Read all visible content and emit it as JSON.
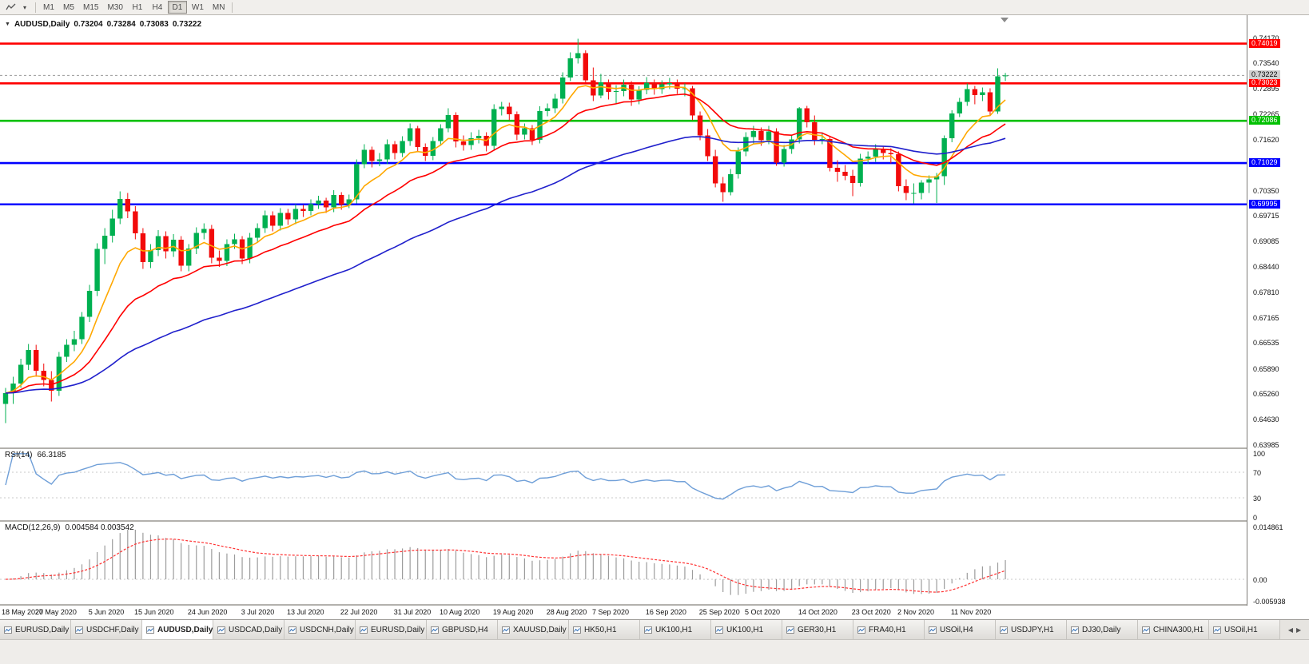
{
  "colors": {
    "up": "#00b050",
    "down": "#f20a0a",
    "ma_fast": "#ffa800",
    "ma_mid": "#ff0000",
    "ma_slow": "#2020cc",
    "rsi_line": "#6f9fd8",
    "macd_hist": "#9c9c9c",
    "macd_signal": "#ff3030",
    "level_red": "#ff0000",
    "level_green": "#00c000",
    "level_blue": "#0000ff",
    "grid_dotted": "#c8c8c8",
    "current_price_line": "#9a9a9a",
    "current_badge_bg": "#d0d0d0"
  },
  "toolbar": {
    "timeframes": [
      "M1",
      "M5",
      "M15",
      "M30",
      "H1",
      "H4",
      "D1",
      "W1",
      "MN"
    ],
    "active_timeframe": "D1"
  },
  "chart_header": {
    "expand_icon": "▼",
    "symbol": "AUDUSD,Daily",
    "open": "0.73204",
    "high": "0.73284",
    "low": "0.73083",
    "close": "0.73222"
  },
  "price_axis": {
    "ticks": [
      "0.74170",
      "0.73540",
      "0.72895",
      "0.72265",
      "0.71620",
      "0.70350",
      "0.69715",
      "0.69085",
      "0.68440",
      "0.67810",
      "0.67165",
      "0.66535",
      "0.65890",
      "0.65260",
      "0.64630",
      "0.63985"
    ],
    "current": {
      "value": "0.73222"
    },
    "level_badges": [
      {
        "value": "0.74019",
        "color": "#ff0000"
      },
      {
        "value": "0.73023",
        "color": "#ff0000"
      },
      {
        "value": "0.72086",
        "color": "#00c000"
      },
      {
        "value": "0.71029",
        "color": "#0000ff"
      },
      {
        "value": "0.69995",
        "color": "#0000ff"
      }
    ]
  },
  "rsi_panel": {
    "label": "RSI(14)",
    "value": "66.3185",
    "axis": [
      "100",
      "70",
      "30",
      "0"
    ],
    "dotted_levels": [
      70,
      30
    ]
  },
  "macd_panel": {
    "label": "MACD(12,26,9)",
    "values": "0.004584 0.003542",
    "axis_max": "0.014861",
    "axis_zero": "0.00",
    "axis_min": "-0.005938"
  },
  "tabs": {
    "items": [
      "EURUSD,Daily",
      "USDCHF,Daily",
      "AUDUSD,Daily",
      "USDCAD,Daily",
      "USDCNH,Daily",
      "EURUSD,Daily",
      "GBPUSD,H4",
      "XAUUSD,Daily",
      "HK50,H1",
      "UK100,H1",
      "UK100,H1",
      "GER30,H1",
      "FRA40,H1",
      "USOil,H4",
      "USDJPY,H1",
      "DJ30,Daily",
      "CHINA300,H1",
      "USOil,H1"
    ],
    "active_index": 2,
    "nav_left": "◀",
    "nav_right": "▶"
  },
  "chart_data": {
    "type": "candlestick",
    "symbol": "AUDUSD",
    "timeframe": "Daily",
    "last_bar": {
      "open": 0.73204,
      "high": 0.73284,
      "low": 0.73083,
      "close": 0.73222
    },
    "horizontal_levels": [
      {
        "price": 0.74019,
        "color": "#ff0000"
      },
      {
        "price": 0.73023,
        "color": "#ff0000"
      },
      {
        "price": 0.72086,
        "color": "#00c000"
      },
      {
        "price": 0.71029,
        "color": "#0000ff"
      },
      {
        "price": 0.69995,
        "color": "#0000ff"
      }
    ],
    "moving_averages": [
      {
        "period": 8,
        "type": "ema",
        "color": "#ffa800"
      },
      {
        "period": 20,
        "type": "ema",
        "color": "#ff0000"
      },
      {
        "period": 55,
        "type": "ema",
        "color": "#2020cc"
      }
    ],
    "indicators": {
      "rsi": {
        "period": 14,
        "current": 66.3185,
        "levels": [
          70,
          30
        ],
        "range": [
          0,
          100
        ]
      },
      "macd": {
        "fast": 12,
        "slow": 26,
        "signal": 9,
        "current_main": 0.004584,
        "current_signal": 0.003542,
        "axis_range": [
          -0.005938,
          0.014861
        ]
      }
    },
    "x_labels": [
      {
        "index": 0,
        "date": "18 May 2020"
      },
      {
        "index": 7,
        "date": "27 May 2020"
      },
      {
        "index": 14,
        "date": "5 Jun 2020"
      },
      {
        "index": 20,
        "date": "15 Jun 2020"
      },
      {
        "index": 27,
        "date": "24 Jun 2020"
      },
      {
        "index": 34,
        "date": "3 Jul 2020"
      },
      {
        "index": 40,
        "date": "13 Jul 2020"
      },
      {
        "index": 47,
        "date": "22 Jul 2020"
      },
      {
        "index": 54,
        "date": "31 Jul 2020"
      },
      {
        "index": 60,
        "date": "10 Aug 2020"
      },
      {
        "index": 67,
        "date": "19 Aug 2020"
      },
      {
        "index": 74,
        "date": "28 Aug 2020"
      },
      {
        "index": 80,
        "date": "7 Sep 2020"
      },
      {
        "index": 87,
        "date": "16 Sep 2020"
      },
      {
        "index": 94,
        "date": "25 Sep 2020"
      },
      {
        "index": 100,
        "date": "5 Oct 2020"
      },
      {
        "index": 107,
        "date": "14 Oct 2020"
      },
      {
        "index": 114,
        "date": "23 Oct 2020"
      },
      {
        "index": 120,
        "date": "2 Nov 2020"
      },
      {
        "index": 127,
        "date": "11 Nov 2020"
      }
    ],
    "candles": [
      [
        0.65,
        0.654,
        0.6452,
        0.6527
      ],
      [
        0.6527,
        0.6568,
        0.65,
        0.6551
      ],
      [
        0.6551,
        0.6613,
        0.654,
        0.6598
      ],
      [
        0.6598,
        0.665,
        0.6585,
        0.6635
      ],
      [
        0.6635,
        0.6648,
        0.6568,
        0.6583
      ],
      [
        0.6583,
        0.6601,
        0.6544,
        0.656
      ],
      [
        0.656,
        0.6582,
        0.6506,
        0.6533
      ],
      [
        0.6533,
        0.663,
        0.652,
        0.6618
      ],
      [
        0.6618,
        0.6662,
        0.6605,
        0.6648
      ],
      [
        0.6648,
        0.6683,
        0.6632,
        0.6662
      ],
      [
        0.6662,
        0.673,
        0.665,
        0.6718
      ],
      [
        0.6718,
        0.6798,
        0.6705,
        0.6783
      ],
      [
        0.6783,
        0.6902,
        0.677,
        0.6888
      ],
      [
        0.6888,
        0.694,
        0.685,
        0.6921
      ],
      [
        0.6921,
        0.6986,
        0.6904,
        0.6964
      ],
      [
        0.6964,
        0.7032,
        0.695,
        0.7013
      ],
      [
        0.7013,
        0.7028,
        0.6965,
        0.6982
      ],
      [
        0.6982,
        0.6995,
        0.6912,
        0.6927
      ],
      [
        0.6927,
        0.694,
        0.6838,
        0.6855
      ],
      [
        0.6855,
        0.69,
        0.684,
        0.6885
      ],
      [
        0.6885,
        0.6935,
        0.687,
        0.692
      ],
      [
        0.692,
        0.6932,
        0.6864,
        0.6882
      ],
      [
        0.6882,
        0.6925,
        0.6868,
        0.6911
      ],
      [
        0.6911,
        0.692,
        0.6832,
        0.6846
      ],
      [
        0.6846,
        0.69,
        0.6832,
        0.6889
      ],
      [
        0.6889,
        0.6942,
        0.6875,
        0.6928
      ],
      [
        0.6928,
        0.6952,
        0.6912,
        0.6938
      ],
      [
        0.6938,
        0.6948,
        0.6852,
        0.6866
      ],
      [
        0.6866,
        0.6884,
        0.6843,
        0.6858
      ],
      [
        0.6858,
        0.6912,
        0.6845,
        0.69
      ],
      [
        0.69,
        0.6926,
        0.6888,
        0.6912
      ],
      [
        0.6912,
        0.692,
        0.685,
        0.6864
      ],
      [
        0.6864,
        0.6928,
        0.6852,
        0.6916
      ],
      [
        0.6916,
        0.6952,
        0.6904,
        0.694
      ],
      [
        0.694,
        0.6984,
        0.6928,
        0.6972
      ],
      [
        0.6972,
        0.6982,
        0.6932,
        0.6946
      ],
      [
        0.6946,
        0.699,
        0.6934,
        0.6978
      ],
      [
        0.6978,
        0.6988,
        0.6948,
        0.6962
      ],
      [
        0.6962,
        0.7,
        0.695,
        0.6988
      ],
      [
        0.6988,
        0.6998,
        0.6968,
        0.6983
      ],
      [
        0.6983,
        0.7012,
        0.6972,
        0.7
      ],
      [
        0.7,
        0.7021,
        0.6988,
        0.7009
      ],
      [
        0.7009,
        0.7016,
        0.6978,
        0.6992
      ],
      [
        0.6992,
        0.7035,
        0.698,
        0.7023
      ],
      [
        0.7023,
        0.703,
        0.6986,
        0.6999
      ],
      [
        0.6999,
        0.7024,
        0.699,
        0.7012
      ],
      [
        0.7012,
        0.7112,
        0.7002,
        0.71
      ],
      [
        0.71,
        0.715,
        0.709,
        0.7136
      ],
      [
        0.7136,
        0.7144,
        0.7092,
        0.7108
      ],
      [
        0.7108,
        0.7128,
        0.7095,
        0.7112
      ],
      [
        0.7112,
        0.7162,
        0.71,
        0.715
      ],
      [
        0.715,
        0.7158,
        0.7112,
        0.7128
      ],
      [
        0.7128,
        0.717,
        0.7118,
        0.7158
      ],
      [
        0.7158,
        0.7202,
        0.7146,
        0.719
      ],
      [
        0.719,
        0.7196,
        0.713,
        0.7143
      ],
      [
        0.7143,
        0.7152,
        0.7108,
        0.7121
      ],
      [
        0.7121,
        0.7168,
        0.711,
        0.7158
      ],
      [
        0.7158,
        0.72,
        0.7146,
        0.719
      ],
      [
        0.719,
        0.724,
        0.718,
        0.7223
      ],
      [
        0.7223,
        0.723,
        0.7142,
        0.7157
      ],
      [
        0.7157,
        0.7172,
        0.7134,
        0.7148
      ],
      [
        0.7148,
        0.718,
        0.7136,
        0.7165
      ],
      [
        0.7165,
        0.7186,
        0.7152,
        0.7171
      ],
      [
        0.7171,
        0.718,
        0.7132,
        0.7146
      ],
      [
        0.7146,
        0.725,
        0.7136,
        0.7238
      ],
      [
        0.7238,
        0.7256,
        0.7222,
        0.7244
      ],
      [
        0.7244,
        0.7254,
        0.721,
        0.7225
      ],
      [
        0.7225,
        0.7232,
        0.716,
        0.7174
      ],
      [
        0.7174,
        0.7202,
        0.7162,
        0.719
      ],
      [
        0.719,
        0.7198,
        0.7148,
        0.7161
      ],
      [
        0.7161,
        0.7245,
        0.7152,
        0.7233
      ],
      [
        0.7233,
        0.7252,
        0.722,
        0.724
      ],
      [
        0.724,
        0.7276,
        0.7228,
        0.7264
      ],
      [
        0.7264,
        0.733,
        0.7252,
        0.7317
      ],
      [
        0.7317,
        0.738,
        0.7308,
        0.7365
      ],
      [
        0.7365,
        0.7414,
        0.7352,
        0.7378
      ],
      [
        0.7378,
        0.7385,
        0.73,
        0.731
      ],
      [
        0.731,
        0.7342,
        0.7258,
        0.7272
      ],
      [
        0.7272,
        0.7326,
        0.7265,
        0.7305
      ],
      [
        0.7305,
        0.7312,
        0.7262,
        0.7281
      ],
      [
        0.7281,
        0.7298,
        0.7252,
        0.7283
      ],
      [
        0.7283,
        0.7312,
        0.727,
        0.7299
      ],
      [
        0.7299,
        0.7308,
        0.7246,
        0.7262
      ],
      [
        0.7262,
        0.7295,
        0.725,
        0.7286
      ],
      [
        0.7286,
        0.7318,
        0.7275,
        0.7304
      ],
      [
        0.7304,
        0.7312,
        0.7274,
        0.7288
      ],
      [
        0.7288,
        0.731,
        0.7276,
        0.73
      ],
      [
        0.73,
        0.7316,
        0.7288,
        0.7303
      ],
      [
        0.7303,
        0.7312,
        0.7276,
        0.7289
      ],
      [
        0.7289,
        0.7302,
        0.727,
        0.729
      ],
      [
        0.729,
        0.7296,
        0.721,
        0.7222
      ],
      [
        0.7222,
        0.7232,
        0.716,
        0.7172
      ],
      [
        0.7172,
        0.7188,
        0.7108,
        0.712
      ],
      [
        0.712,
        0.7136,
        0.7042,
        0.7052
      ],
      [
        0.7052,
        0.7068,
        0.7006,
        0.703
      ],
      [
        0.703,
        0.7088,
        0.7022,
        0.7075
      ],
      [
        0.7075,
        0.7142,
        0.7064,
        0.7132
      ],
      [
        0.7132,
        0.718,
        0.712,
        0.7168
      ],
      [
        0.7168,
        0.7196,
        0.7152,
        0.7183
      ],
      [
        0.7183,
        0.7192,
        0.7146,
        0.716
      ],
      [
        0.716,
        0.7196,
        0.715,
        0.7182
      ],
      [
        0.7182,
        0.719,
        0.7096,
        0.7104
      ],
      [
        0.7104,
        0.7148,
        0.7094,
        0.7138
      ],
      [
        0.7138,
        0.7172,
        0.7126,
        0.7162
      ],
      [
        0.7162,
        0.7243,
        0.7152,
        0.724
      ],
      [
        0.724,
        0.7246,
        0.7192,
        0.7205
      ],
      [
        0.7205,
        0.7222,
        0.7148,
        0.7161
      ],
      [
        0.7161,
        0.718,
        0.715,
        0.7163
      ],
      [
        0.7163,
        0.717,
        0.7082,
        0.7091
      ],
      [
        0.7091,
        0.711,
        0.7056,
        0.7081
      ],
      [
        0.7081,
        0.7098,
        0.706,
        0.7071
      ],
      [
        0.7071,
        0.7086,
        0.702,
        0.7053
      ],
      [
        0.7053,
        0.7126,
        0.7044,
        0.7114
      ],
      [
        0.7114,
        0.7132,
        0.71,
        0.7119
      ],
      [
        0.7119,
        0.715,
        0.7106,
        0.7138
      ],
      [
        0.7138,
        0.7146,
        0.7112,
        0.7128
      ],
      [
        0.7128,
        0.714,
        0.7102,
        0.7125
      ],
      [
        0.7125,
        0.7132,
        0.7032,
        0.7045
      ],
      [
        0.7045,
        0.7062,
        0.701,
        0.7028
      ],
      [
        0.7028,
        0.7052,
        0.7002,
        0.7028
      ],
      [
        0.7028,
        0.706,
        0.7012,
        0.7054
      ],
      [
        0.7054,
        0.7072,
        0.7028,
        0.7062
      ],
      [
        0.7062,
        0.7078,
        0.7003,
        0.707
      ],
      [
        0.707,
        0.7172,
        0.7048,
        0.7165
      ],
      [
        0.7165,
        0.7235,
        0.7155,
        0.7227
      ],
      [
        0.7227,
        0.7266,
        0.7218,
        0.7256
      ],
      [
        0.7256,
        0.7302,
        0.7246,
        0.7288
      ],
      [
        0.7288,
        0.7296,
        0.725,
        0.7273
      ],
      [
        0.7273,
        0.7292,
        0.7258,
        0.728
      ],
      [
        0.728,
        0.729,
        0.7222,
        0.7232
      ],
      [
        0.7232,
        0.734,
        0.7226,
        0.732
      ],
      [
        0.73204,
        0.73284,
        0.73083,
        0.73222
      ]
    ]
  }
}
